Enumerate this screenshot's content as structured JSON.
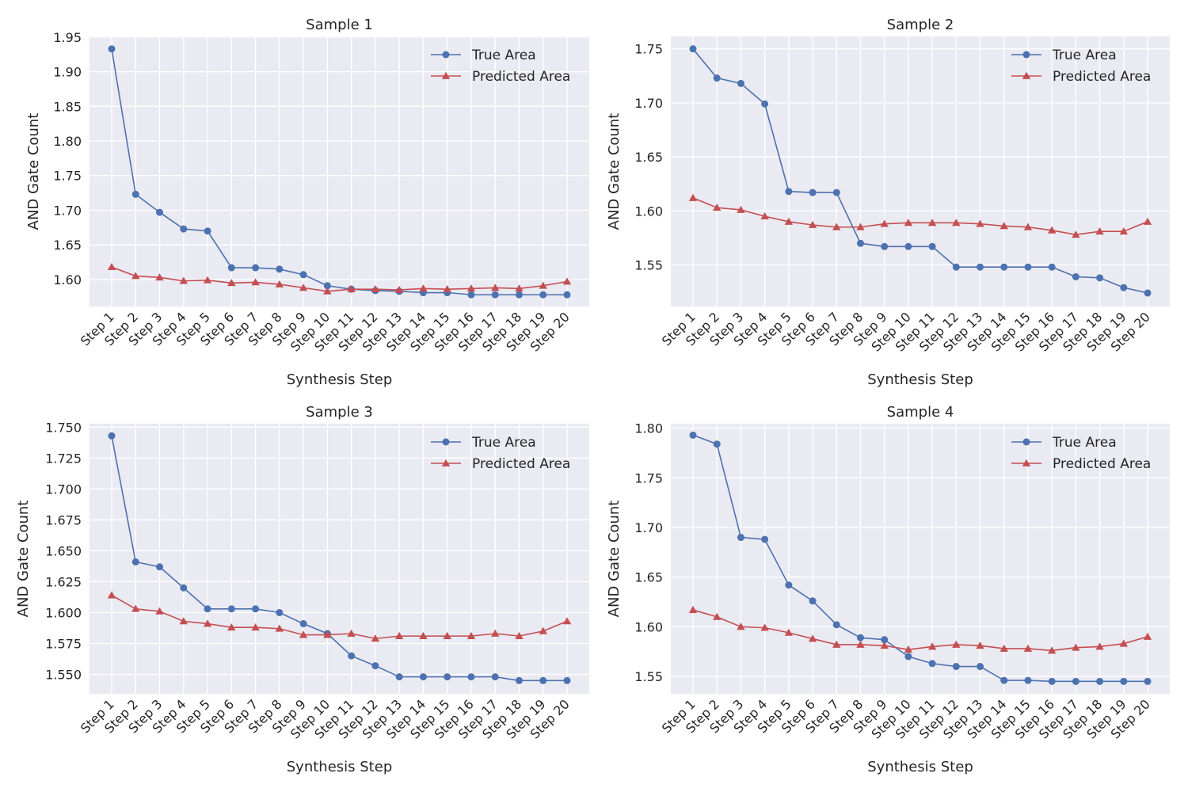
{
  "figure": {
    "background": "#ffffff",
    "axes_face_color": "#eaeaf2",
    "grid_color": "#ffffff",
    "text_color": "#262626"
  },
  "chart_data": [
    {
      "type": "line",
      "title": "Sample 1",
      "xlabel": "Synthesis Step",
      "ylabel": "AND Gate Count",
      "categories": [
        "Step 1",
        "Step 2",
        "Step 3",
        "Step 4",
        "Step 5",
        "Step 6",
        "Step 7",
        "Step 8",
        "Step 9",
        "Step 10",
        "Step 11",
        "Step 12",
        "Step 13",
        "Step 14",
        "Step 15",
        "Step 16",
        "Step 17",
        "Step 18",
        "Step 19",
        "Step 20"
      ],
      "yticks": [
        "1.60",
        "1.65",
        "1.70",
        "1.75",
        "1.80",
        "1.85",
        "1.90",
        "1.95"
      ],
      "ylim": [
        1.561,
        1.951
      ],
      "grid": true,
      "legend": "upper right",
      "series": [
        {
          "name": "True Area",
          "color": "#4c72b0",
          "marker": "circle",
          "values": [
            1.933,
            1.723,
            1.697,
            1.673,
            1.67,
            1.617,
            1.617,
            1.615,
            1.607,
            1.591,
            1.586,
            1.584,
            1.583,
            1.581,
            1.581,
            1.578,
            1.578,
            1.578,
            1.578,
            1.578
          ]
        },
        {
          "name": "Predicted Area",
          "color": "#c44e52",
          "marker": "triangle",
          "values": [
            1.618,
            1.605,
            1.603,
            1.598,
            1.599,
            1.595,
            1.596,
            1.593,
            1.588,
            1.583,
            1.586,
            1.586,
            1.585,
            1.587,
            1.586,
            1.587,
            1.588,
            1.587,
            1.591,
            1.597
          ]
        }
      ]
    },
    {
      "type": "line",
      "title": "Sample 2",
      "xlabel": "Synthesis Step",
      "ylabel": "AND Gate Count",
      "categories": [
        "Step 1",
        "Step 2",
        "Step 3",
        "Step 4",
        "Step 5",
        "Step 6",
        "Step 7",
        "Step 8",
        "Step 9",
        "Step 10",
        "Step 11",
        "Step 12",
        "Step 13",
        "Step 14",
        "Step 15",
        "Step 16",
        "Step 17",
        "Step 18",
        "Step 19",
        "Step 20"
      ],
      "yticks": [
        "1.55",
        "1.60",
        "1.65",
        "1.70",
        "1.75"
      ],
      "ylim": [
        1.5115,
        1.7615
      ],
      "grid": true,
      "legend": "upper right",
      "series": [
        {
          "name": "True Area",
          "color": "#4c72b0",
          "marker": "circle",
          "values": [
            1.75,
            1.723,
            1.718,
            1.699,
            1.618,
            1.617,
            1.617,
            1.57,
            1.567,
            1.567,
            1.567,
            1.548,
            1.548,
            1.548,
            1.548,
            1.548,
            1.539,
            1.538,
            1.529,
            1.524
          ]
        },
        {
          "name": "Predicted Area",
          "color": "#c44e52",
          "marker": "triangle",
          "values": [
            1.612,
            1.603,
            1.601,
            1.595,
            1.59,
            1.587,
            1.585,
            1.585,
            1.588,
            1.589,
            1.589,
            1.589,
            1.588,
            1.586,
            1.585,
            1.582,
            1.578,
            1.581,
            1.581,
            1.59
          ]
        }
      ]
    },
    {
      "type": "line",
      "title": "Sample 3",
      "xlabel": "Synthesis Step",
      "ylabel": "AND Gate Count",
      "categories": [
        "Step 1",
        "Step 2",
        "Step 3",
        "Step 4",
        "Step 5",
        "Step 6",
        "Step 7",
        "Step 8",
        "Step 9",
        "Step 10",
        "Step 11",
        "Step 12",
        "Step 13",
        "Step 14",
        "Step 15",
        "Step 16",
        "Step 17",
        "Step 18",
        "Step 19",
        "Step 20"
      ],
      "yticks": [
        "1.550",
        "1.575",
        "1.600",
        "1.625",
        "1.650",
        "1.675",
        "1.700",
        "1.725",
        "1.750"
      ],
      "ylim": [
        1.5343,
        1.7528
      ],
      "grid": true,
      "legend": "upper right",
      "series": [
        {
          "name": "True Area",
          "color": "#4c72b0",
          "marker": "circle",
          "values": [
            1.743,
            1.641,
            1.637,
            1.62,
            1.603,
            1.603,
            1.603,
            1.6,
            1.591,
            1.583,
            1.565,
            1.557,
            1.548,
            1.548,
            1.548,
            1.548,
            1.548,
            1.545,
            1.545,
            1.545
          ]
        },
        {
          "name": "Predicted Area",
          "color": "#c44e52",
          "marker": "triangle",
          "values": [
            1.614,
            1.603,
            1.601,
            1.593,
            1.591,
            1.588,
            1.588,
            1.587,
            1.582,
            1.582,
            1.583,
            1.579,
            1.581,
            1.581,
            1.581,
            1.581,
            1.583,
            1.581,
            1.585,
            1.593
          ]
        }
      ]
    },
    {
      "type": "line",
      "title": "Sample 4",
      "xlabel": "Synthesis Step",
      "ylabel": "AND Gate Count",
      "categories": [
        "Step 1",
        "Step 2",
        "Step 3",
        "Step 4",
        "Step 5",
        "Step 6",
        "Step 7",
        "Step 8",
        "Step 9",
        "Step 10",
        "Step 11",
        "Step 12",
        "Step 13",
        "Step 14",
        "Step 15",
        "Step 16",
        "Step 17",
        "Step 18",
        "Step 19",
        "Step 20"
      ],
      "yticks": [
        "1.55",
        "1.60",
        "1.65",
        "1.70",
        "1.75",
        "1.80"
      ],
      "ylim": [
        1.5325,
        1.8045
      ],
      "grid": true,
      "legend": "upper right",
      "series": [
        {
          "name": "True Area",
          "color": "#4c72b0",
          "marker": "circle",
          "values": [
            1.793,
            1.784,
            1.69,
            1.688,
            1.642,
            1.626,
            1.602,
            1.589,
            1.587,
            1.57,
            1.563,
            1.56,
            1.56,
            1.546,
            1.546,
            1.545,
            1.545,
            1.545,
            1.545,
            1.545
          ]
        },
        {
          "name": "Predicted Area",
          "color": "#c44e52",
          "marker": "triangle",
          "values": [
            1.617,
            1.61,
            1.6,
            1.599,
            1.594,
            1.588,
            1.582,
            1.582,
            1.581,
            1.577,
            1.58,
            1.582,
            1.581,
            1.578,
            1.578,
            1.576,
            1.579,
            1.58,
            1.583,
            1.59
          ]
        }
      ]
    }
  ]
}
